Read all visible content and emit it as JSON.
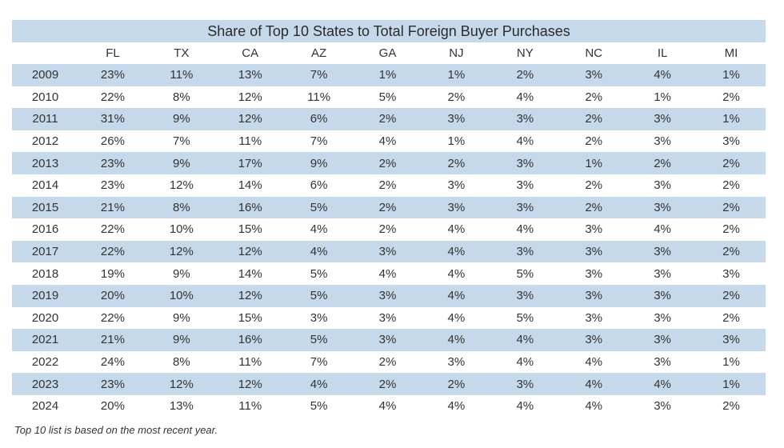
{
  "chart_data": {
    "type": "table",
    "title": "Share of Top 10 States to Total Foreign Buyer Purchases",
    "columns": [
      "",
      "FL",
      "TX",
      "CA",
      "AZ",
      "GA",
      "NJ",
      "NY",
      "NC",
      "IL",
      "MI"
    ],
    "rows": [
      [
        "2009",
        "23%",
        "11%",
        "13%",
        "7%",
        "1%",
        "1%",
        "2%",
        "3%",
        "4%",
        "1%"
      ],
      [
        "2010",
        "22%",
        "8%",
        "12%",
        "11%",
        "5%",
        "2%",
        "4%",
        "2%",
        "1%",
        "2%"
      ],
      [
        "2011",
        "31%",
        "9%",
        "12%",
        "6%",
        "2%",
        "3%",
        "3%",
        "2%",
        "3%",
        "1%"
      ],
      [
        "2012",
        "26%",
        "7%",
        "11%",
        "7%",
        "4%",
        "1%",
        "4%",
        "2%",
        "3%",
        "3%"
      ],
      [
        "2013",
        "23%",
        "9%",
        "17%",
        "9%",
        "2%",
        "2%",
        "3%",
        "1%",
        "2%",
        "2%"
      ],
      [
        "2014",
        "23%",
        "12%",
        "14%",
        "6%",
        "2%",
        "3%",
        "3%",
        "2%",
        "3%",
        "2%"
      ],
      [
        "2015",
        "21%",
        "8%",
        "16%",
        "5%",
        "2%",
        "3%",
        "3%",
        "2%",
        "3%",
        "2%"
      ],
      [
        "2016",
        "22%",
        "10%",
        "15%",
        "4%",
        "2%",
        "4%",
        "4%",
        "3%",
        "4%",
        "2%"
      ],
      [
        "2017",
        "22%",
        "12%",
        "12%",
        "4%",
        "3%",
        "4%",
        "3%",
        "3%",
        "3%",
        "2%"
      ],
      [
        "2018",
        "19%",
        "9%",
        "14%",
        "5%",
        "4%",
        "4%",
        "5%",
        "3%",
        "3%",
        "3%"
      ],
      [
        "2019",
        "20%",
        "10%",
        "12%",
        "5%",
        "3%",
        "4%",
        "3%",
        "3%",
        "3%",
        "2%"
      ],
      [
        "2020",
        "22%",
        "9%",
        "15%",
        "3%",
        "3%",
        "4%",
        "5%",
        "3%",
        "3%",
        "2%"
      ],
      [
        "2021",
        "21%",
        "9%",
        "16%",
        "5%",
        "3%",
        "4%",
        "4%",
        "3%",
        "3%",
        "3%"
      ],
      [
        "2022",
        "24%",
        "8%",
        "11%",
        "7%",
        "2%",
        "3%",
        "4%",
        "4%",
        "3%",
        "1%"
      ],
      [
        "2023",
        "23%",
        "12%",
        "12%",
        "4%",
        "2%",
        "2%",
        "3%",
        "4%",
        "4%",
        "1%"
      ],
      [
        "2024",
        "20%",
        "13%",
        "11%",
        "5%",
        "4%",
        "4%",
        "4%",
        "4%",
        "3%",
        "2%"
      ]
    ],
    "note": "Top 10 list is based on the most recent year.",
    "colors": {
      "band": "#c5d9ea",
      "alt_row": "#ffffff"
    }
  }
}
